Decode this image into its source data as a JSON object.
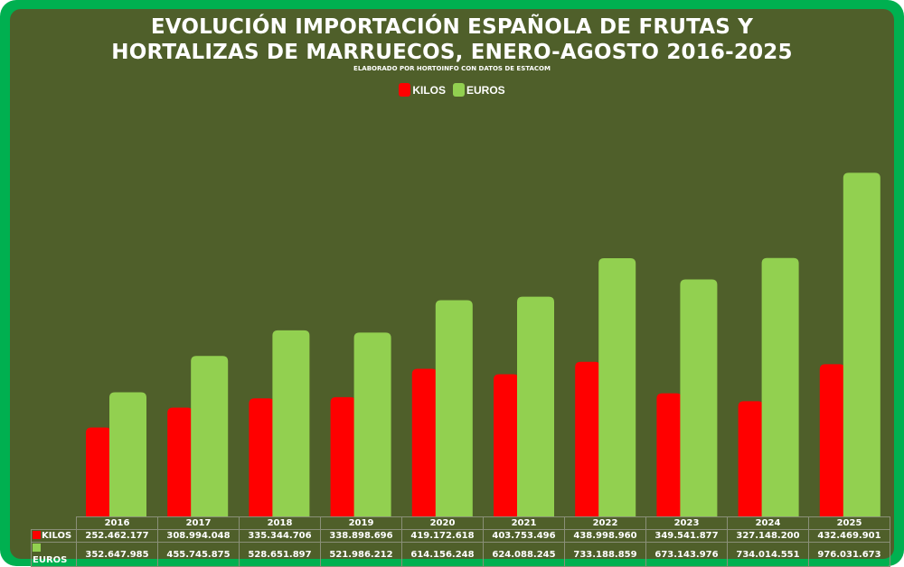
{
  "chart_data": {
    "type": "bar",
    "title": "EVOLUCIÓN IMPORTACIÓN ESPAÑOLA DE FRUTAS Y HORTALIZAS DE MARRUECOS, ENERO-AGOSTO 2016-2025",
    "title_lines": [
      "EVOLUCIÓN IMPORTACIÓN ESPAÑOLA DE FRUTAS Y",
      "HORTALIZAS DE MARRUECOS, ENERO-AGOSTO 2016-2025"
    ],
    "subtitle": "ELABORADO POR HORTOINFO CON DATOS DE ESTACOM",
    "xlabel": "",
    "ylabel": "",
    "ylim": [
      0,
      1000000000
    ],
    "grid": false,
    "legend_position": "top-center",
    "categories": [
      "2016",
      "2017",
      "2018",
      "2019",
      "2020",
      "2021",
      "2022",
      "2023",
      "2024",
      "2025"
    ],
    "series": [
      {
        "name": "KILOS",
        "color": "#ff0000",
        "values": [
          252462177,
          308994048,
          335344706,
          338898696,
          419172618,
          403753496,
          438998960,
          349541877,
          327148200,
          432469901
        ],
        "labels": [
          "252.462.177",
          "308.994.048",
          "335.344.706",
          "338.898.696",
          "419.172.618",
          "403.753.496",
          "438.998.960",
          "349.541.877",
          "327.148.200",
          "432.469.901"
        ]
      },
      {
        "name": "EUROS",
        "color": "#92d050",
        "values": [
          352647985,
          455745875,
          528651897,
          521986212,
          614156248,
          624088245,
          733188859,
          673143976,
          734014551,
          976031673
        ],
        "labels": [
          "352.647.985",
          "455.745.875",
          "528.651.897",
          "521.986.212",
          "614.156.248",
          "624.088.245",
          "733.188.859",
          "673.143.976",
          "734.014.551",
          "976.031.673"
        ]
      }
    ]
  },
  "colors": {
    "frame": "#00b050",
    "background": "#4f5f2a"
  }
}
